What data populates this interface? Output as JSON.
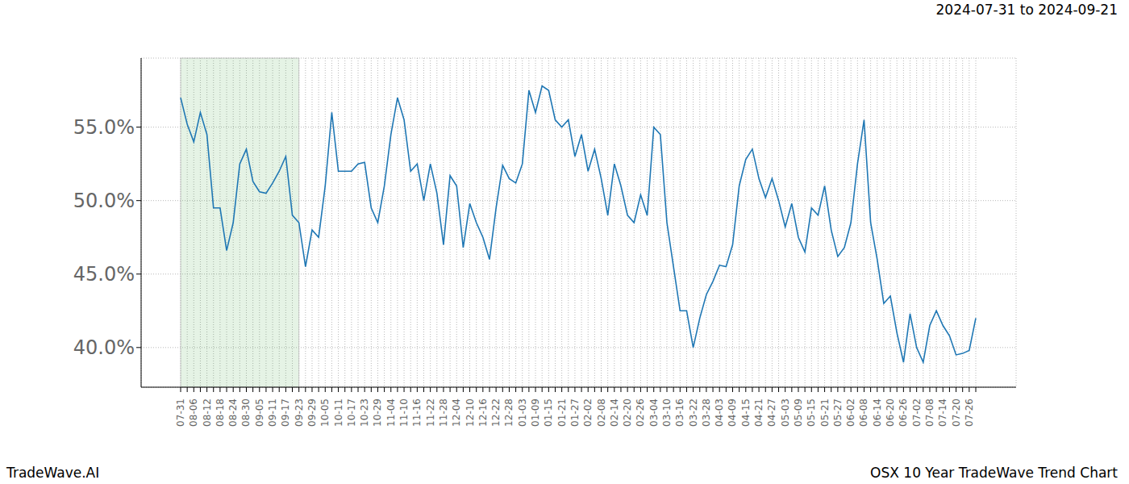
{
  "chart_data": {
    "type": "line",
    "title": "2024-07-31 to 2024-09-21",
    "footer_left": "TradeWave.AI",
    "footer_right": "OSX 10 Year TradeWave Trend Chart",
    "categories": [
      "07-31",
      null,
      "08-06",
      null,
      "08-12",
      null,
      "08-18",
      null,
      "08-24",
      null,
      "08-30",
      null,
      "09-05",
      null,
      "09-11",
      null,
      "09-17",
      null,
      "09-23",
      null,
      "09-29",
      null,
      "10-05",
      null,
      "10-11",
      null,
      "10-17",
      null,
      "10-23",
      null,
      "10-29",
      null,
      "11-04",
      null,
      "11-10",
      null,
      "11-16",
      null,
      "11-22",
      null,
      "11-28",
      null,
      "12-04",
      null,
      "12-10",
      null,
      "12-16",
      null,
      "12-22",
      null,
      "12-28",
      null,
      "01-03",
      null,
      "01-09",
      null,
      "01-15",
      null,
      "01-21",
      null,
      "01-27",
      null,
      "02-02",
      null,
      "02-08",
      null,
      "02-14",
      null,
      "02-20",
      null,
      "02-26",
      null,
      "03-04",
      null,
      "03-10",
      null,
      "03-16",
      null,
      "03-22",
      null,
      "03-28",
      null,
      "04-03",
      null,
      "04-09",
      null,
      "04-15",
      null,
      "04-21",
      null,
      "04-27",
      null,
      "05-03",
      null,
      "05-09",
      null,
      "05-15",
      null,
      "05-21",
      null,
      "05-27",
      null,
      "06-02",
      null,
      "06-08",
      null,
      "06-14",
      null,
      "06-20",
      null,
      "06-26",
      null,
      "07-02",
      null,
      "07-08",
      null,
      "07-14",
      null,
      "07-20",
      null,
      "07-26",
      null
    ],
    "values": [
      57.0,
      55.2,
      54.0,
      56.0,
      54.5,
      49.5,
      49.5,
      46.6,
      48.5,
      52.5,
      53.5,
      51.3,
      50.6,
      50.5,
      51.2,
      52.0,
      53.0,
      49.0,
      48.5,
      45.5,
      48.0,
      47.5,
      51.0,
      56.0,
      52.0,
      52.0,
      52.0,
      52.5,
      52.6,
      49.5,
      48.5,
      51.0,
      54.5,
      57.0,
      55.5,
      52.0,
      52.5,
      50.0,
      52.5,
      50.5,
      47.0,
      51.7,
      51.0,
      46.8,
      49.8,
      48.5,
      47.5,
      46.0,
      49.5,
      52.4,
      51.5,
      51.2,
      52.5,
      57.5,
      56.0,
      57.8,
      57.5,
      55.5,
      55.0,
      55.5,
      53.0,
      54.5,
      52.0,
      53.5,
      51.5,
      49.0,
      52.5,
      51.0,
      49.0,
      48.5,
      50.4,
      49.0,
      55.0,
      54.5,
      48.5,
      45.5,
      42.5,
      42.5,
      40.0,
      42.0,
      43.6,
      44.5,
      45.6,
      45.5,
      47.0,
      51.0,
      52.8,
      53.5,
      51.5,
      50.2,
      51.5,
      50.0,
      48.2,
      49.8,
      47.5,
      46.5,
      49.5,
      49.0,
      51.0,
      48.0,
      46.2,
      46.8,
      48.5,
      52.5,
      55.5,
      48.5,
      46.0,
      43.0,
      43.5,
      41.0,
      39.0,
      42.3,
      40.0,
      39.0,
      41.5,
      42.5,
      41.5,
      40.8,
      39.5,
      39.6,
      39.8,
      42.0
    ],
    "color": "#1f77b4",
    "ylim": [
      37.3,
      59.7
    ],
    "yticks": [
      {
        "value": 40,
        "label": "40.0%"
      },
      {
        "value": 45,
        "label": "45.0%"
      },
      {
        "value": 50,
        "label": "50.0%"
      },
      {
        "value": 55,
        "label": "55.0%"
      }
    ],
    "highlight": {
      "from": "07-31",
      "to": "09-23"
    },
    "grid": true
  }
}
